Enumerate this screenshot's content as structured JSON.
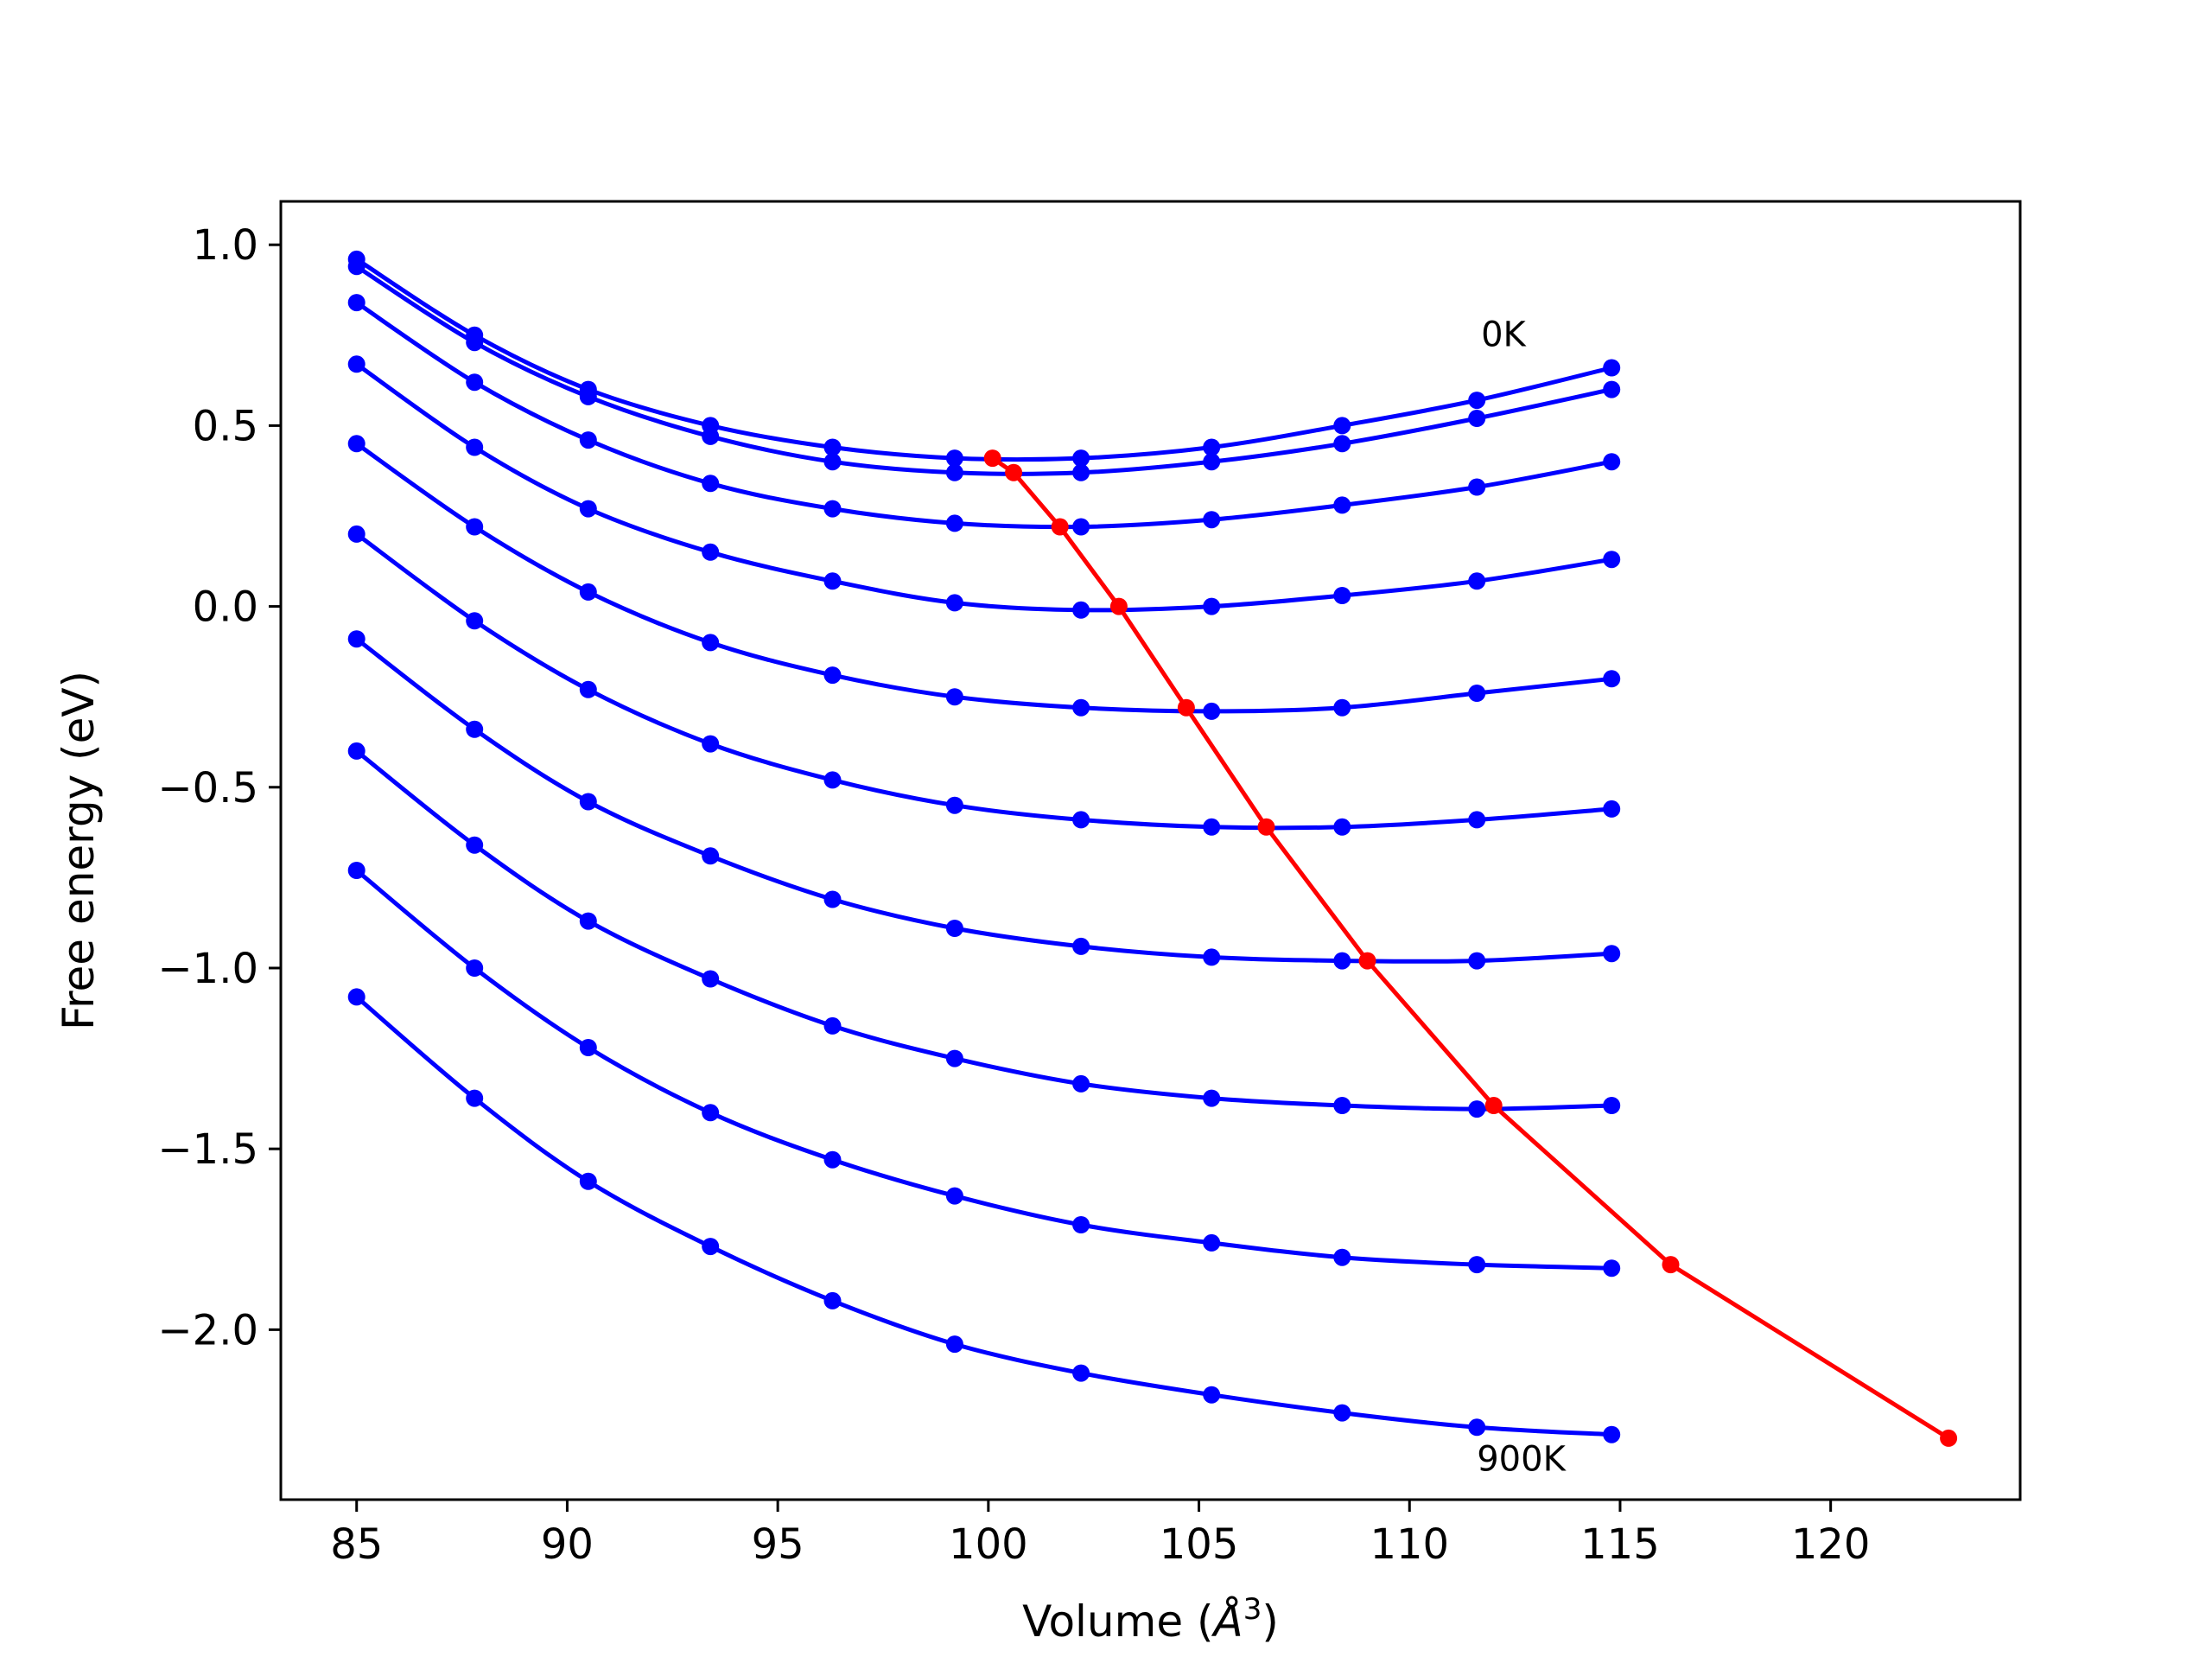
{
  "chart_data": {
    "type": "line",
    "title": "",
    "xlabel": "Volume (Å³)",
    "xlabel_base": "Volume (",
    "xlabel_unit": "Å",
    "xlabel_exp": "3",
    "xlabel_close": ")",
    "ylabel": "Free energy (eV)",
    "xlim": [
      83.2,
      124.5
    ],
    "ylim": [
      -2.47,
      1.12
    ],
    "xticks": [
      85,
      90,
      95,
      100,
      105,
      110,
      115,
      120
    ],
    "xtick_labels": [
      "85",
      "90",
      "95",
      "100",
      "105",
      "110",
      "115",
      "120"
    ],
    "yticks": [
      1.0,
      0.5,
      0.0,
      -0.5,
      -1.0,
      -1.5,
      -2.0
    ],
    "ytick_labels": [
      "1.0",
      "0.5",
      "0.0",
      "−0.5",
      "−1.0",
      "−1.5",
      "−2.0"
    ],
    "grid": false,
    "x": [
      85.0,
      87.8,
      90.5,
      93.4,
      96.3,
      99.2,
      102.2,
      105.3,
      108.4,
      111.6,
      114.8
    ],
    "series": [
      {
        "color": "#0000ff",
        "values": [
          0.96,
          0.75,
          0.6,
          0.5,
          0.44,
          0.41,
          0.41,
          0.44,
          0.5,
          0.57,
          0.66
        ]
      },
      {
        "color": "#0000ff",
        "values": [
          0.94,
          0.73,
          0.58,
          0.47,
          0.4,
          0.37,
          0.37,
          0.4,
          0.45,
          0.52,
          0.6
        ]
      },
      {
        "color": "#0000ff",
        "values": [
          0.84,
          0.62,
          0.46,
          0.34,
          0.27,
          0.23,
          0.22,
          0.24,
          0.28,
          0.33,
          0.4
        ]
      },
      {
        "color": "#0000ff",
        "values": [
          0.67,
          0.44,
          0.27,
          0.15,
          0.07,
          0.01,
          -0.01,
          0.0,
          0.03,
          0.07,
          0.13
        ]
      },
      {
        "color": "#0000ff",
        "values": [
          0.45,
          0.22,
          0.04,
          -0.1,
          -0.19,
          -0.25,
          -0.28,
          -0.29,
          -0.28,
          -0.24,
          -0.2
        ]
      },
      {
        "color": "#0000ff",
        "values": [
          0.2,
          -0.04,
          -0.23,
          -0.38,
          -0.48,
          -0.55,
          -0.59,
          -0.61,
          -0.61,
          -0.59,
          -0.56
        ]
      },
      {
        "color": "#0000ff",
        "values": [
          -0.09,
          -0.34,
          -0.54,
          -0.69,
          -0.81,
          -0.89,
          -0.94,
          -0.97,
          -0.98,
          -0.98,
          -0.96
        ]
      },
      {
        "color": "#0000ff",
        "values": [
          -0.4,
          -0.66,
          -0.87,
          -1.03,
          -1.16,
          -1.25,
          -1.32,
          -1.36,
          -1.38,
          -1.39,
          -1.38
        ]
      },
      {
        "color": "#0000ff",
        "values": [
          -0.73,
          -1.0,
          -1.22,
          -1.4,
          -1.53,
          -1.63,
          -1.71,
          -1.76,
          -1.8,
          -1.82,
          -1.83
        ]
      },
      {
        "color": "#0000ff",
        "values": [
          -1.08,
          -1.36,
          -1.59,
          -1.77,
          -1.92,
          -2.04,
          -2.12,
          -2.18,
          -2.23,
          -2.27,
          -2.29
        ]
      }
    ],
    "minima_series": {
      "color": "#ff0000",
      "x": [
        100.1,
        100.6,
        101.7,
        103.1,
        104.7,
        106.6,
        109.0,
        112.0,
        116.2,
        122.8
      ],
      "y": [
        0.41,
        0.37,
        0.22,
        0.0,
        -0.28,
        -0.61,
        -0.98,
        -1.38,
        -1.82,
        -2.3
      ]
    },
    "annotations": [
      {
        "text": "0K",
        "x": 111.7,
        "y": 0.72
      },
      {
        "text": "900K",
        "x": 111.6,
        "y": -2.39
      }
    ]
  }
}
